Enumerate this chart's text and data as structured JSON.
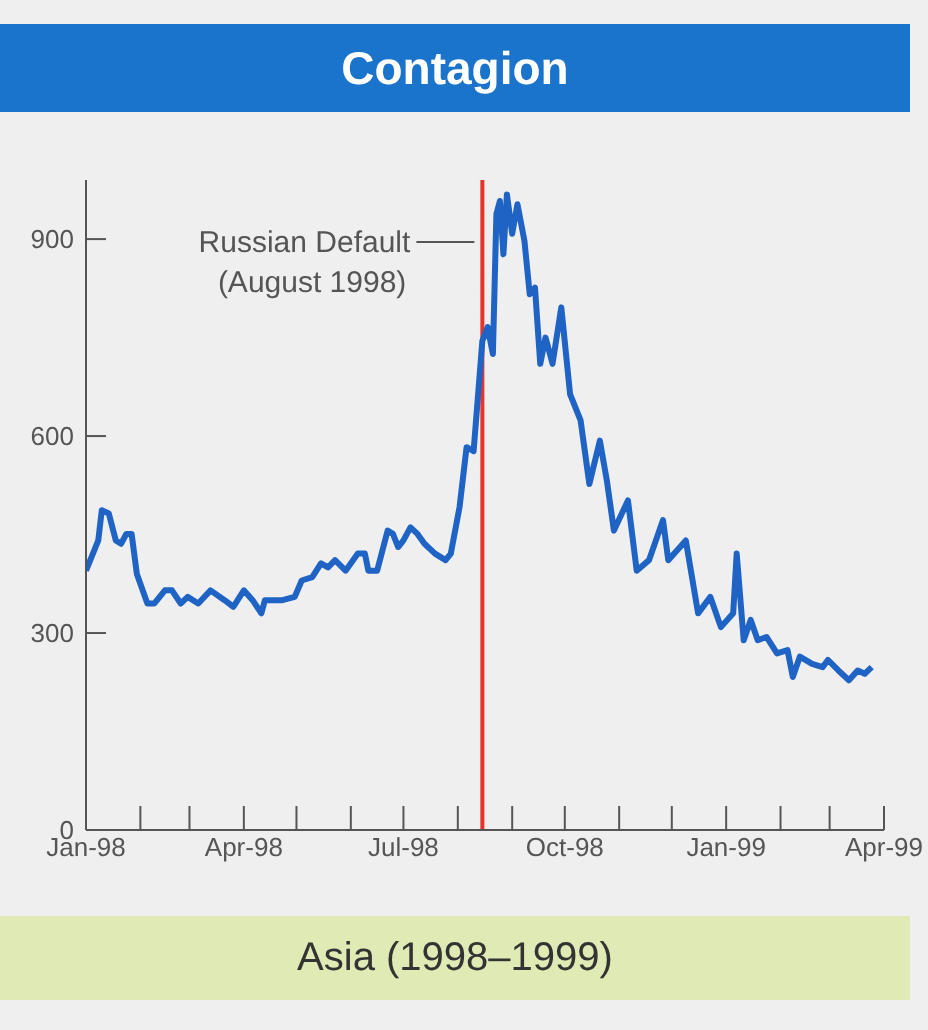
{
  "chart_data": {
    "type": "line",
    "title": "Contagion",
    "subtitle": "Asia (1998–1999)",
    "x": [
      "1998-01-01",
      "1998-01-08",
      "1998-01-10",
      "1998-01-14",
      "1998-01-18",
      "1998-01-21",
      "1998-01-24",
      "1998-01-27",
      "1998-01-30",
      "1998-02-05",
      "1998-02-09",
      "1998-02-15",
      "1998-02-19",
      "1998-02-24",
      "1998-02-28",
      "1998-03-06",
      "1998-03-13",
      "1998-03-21",
      "1998-03-26",
      "1998-04-01",
      "1998-04-06",
      "1998-04-11",
      "1998-04-13",
      "1998-04-23",
      "1998-04-30",
      "1998-05-04",
      "1998-05-10",
      "1998-05-15",
      "1998-05-19",
      "1998-05-23",
      "1998-05-29",
      "1998-06-05",
      "1998-06-09",
      "1998-06-11",
      "1998-06-16",
      "1998-06-22",
      "1998-06-25",
      "1998-06-28",
      "1998-07-01",
      "1998-07-05",
      "1998-07-09",
      "1998-07-13",
      "1998-07-19",
      "1998-07-25",
      "1998-07-28",
      "1998-08-02",
      "1998-08-06",
      "1998-08-10",
      "1998-08-15",
      "1998-08-18",
      "1998-08-21",
      "1998-08-23",
      "1998-08-25",
      "1998-08-27",
      "1998-08-29",
      "1998-09-01",
      "1998-09-04",
      "1998-09-08",
      "1998-09-11",
      "1998-09-14",
      "1998-09-17",
      "1998-09-20",
      "1998-09-24",
      "1998-09-29",
      "1998-10-04",
      "1998-10-10",
      "1998-10-15",
      "1998-10-21",
      "1998-10-25",
      "1998-10-29",
      "1998-11-06",
      "1998-11-11",
      "1998-11-18",
      "1998-11-26",
      "1998-11-29",
      "1998-12-09",
      "1998-12-16",
      "1998-12-23",
      "1998-12-29",
      "1999-01-05",
      "1999-01-07",
      "1999-01-11",
      "1999-01-15",
      "1999-01-19",
      "1999-01-24",
      "1999-01-30",
      "1999-02-05",
      "1999-02-08",
      "1999-02-12",
      "1999-02-19",
      "1999-02-25",
      "1999-02-28",
      "1999-03-06",
      "1999-03-12",
      "1999-03-17",
      "1999-03-21",
      "1999-03-25"
    ],
    "series": [
      {
        "color": "#1f63c4",
        "values": [
          395,
          441,
          487,
          482,
          441,
          436,
          451,
          451,
          390,
          345,
          345,
          365,
          365,
          345,
          355,
          345,
          365,
          350,
          340,
          365,
          350,
          330,
          350,
          350,
          355,
          380,
          385,
          406,
          400,
          411,
          395,
          421,
          421,
          395,
          395,
          456,
          451,
          431,
          441,
          461,
          451,
          436,
          421,
          411,
          421,
          492,
          583,
          577,
          745,
          766,
          725,
          938,
          958,
          877,
          968,
          908,
          953,
          897,
          816,
          826,
          710,
          750,
          710,
          796,
          664,
          624,
          527,
          593,
          532,
          456,
          502,
          395,
          411,
          472,
          411,
          441,
          330,
          355,
          309,
          330,
          421,
          289,
          320,
          289,
          294,
          269,
          274,
          233,
          264,
          253,
          248,
          259,
          243,
          228,
          243,
          238,
          248
        ]
      }
    ],
    "xlim": [
      "1998-01-01",
      "1999-04-01"
    ],
    "xticks": [
      {
        "value": "1998-01-01",
        "label": "Jan-98"
      },
      {
        "value": "1998-02-01",
        "label": null
      },
      {
        "value": "1998-03-01",
        "label": null
      },
      {
        "value": "1998-04-01",
        "label": "Apr-98"
      },
      {
        "value": "1998-05-01",
        "label": null
      },
      {
        "value": "1998-06-01",
        "label": null
      },
      {
        "value": "1998-07-01",
        "label": "Jul-98"
      },
      {
        "value": "1998-08-01",
        "label": null
      },
      {
        "value": "1998-09-01",
        "label": null
      },
      {
        "value": "1998-10-01",
        "label": "Oct-98"
      },
      {
        "value": "1998-11-01",
        "label": null
      },
      {
        "value": "1998-12-01",
        "label": null
      },
      {
        "value": "1999-01-01",
        "label": "Jan-99"
      },
      {
        "value": "1999-02-01",
        "label": null
      },
      {
        "value": "1999-03-01",
        "label": null
      },
      {
        "value": "1999-04-01",
        "label": "Apr-99"
      }
    ],
    "ylim": [
      0,
      990
    ],
    "yticks": [
      0,
      300,
      600,
      900
    ],
    "ref_lines": [
      {
        "axis": "x",
        "value": "1998-08-15",
        "label": "Russian Default (August 1998)",
        "color": "#e8332a"
      }
    ],
    "grid": false,
    "legend": false,
    "marker": "none",
    "line_style": "solid"
  }
}
